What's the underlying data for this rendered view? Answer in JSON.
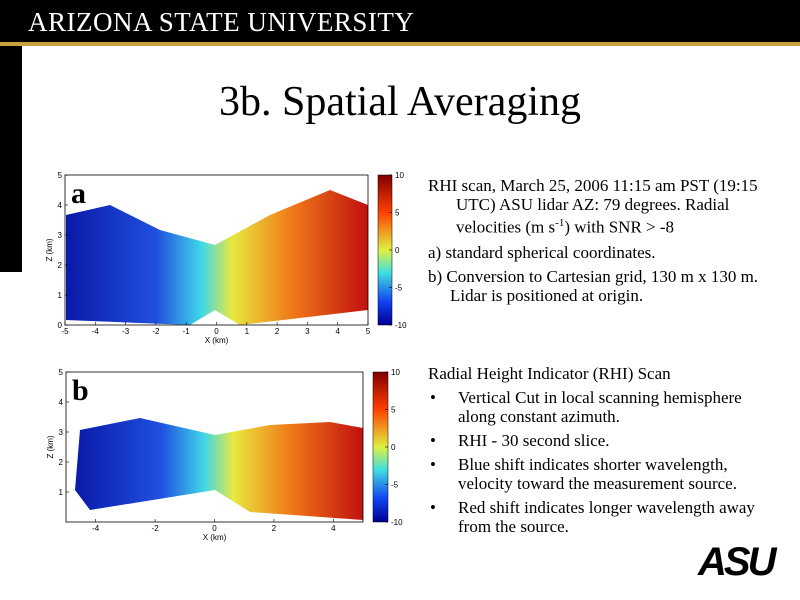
{
  "header": {
    "brand": "ARIZONA STATE UNIVERSITY"
  },
  "title": "3b. Spatial Averaging",
  "panels": [
    {
      "label": "a",
      "x_label": "X (km)",
      "y_label": "Z (km)",
      "xticks": [
        -5,
        -4,
        -3,
        -2,
        -1,
        0,
        1,
        2,
        3,
        4,
        5
      ],
      "yticks": [
        0,
        1,
        2,
        3,
        4,
        5
      ],
      "colorbar_ticks": [
        10,
        5,
        0,
        -5,
        -10
      ]
    },
    {
      "label": "b",
      "x_label": "X (km)",
      "y_label": "Z (km)",
      "xticks": [
        -4,
        -2,
        0,
        2,
        4
      ],
      "yticks": [
        1,
        2,
        3,
        4,
        5
      ],
      "colorbar_ticks": [
        10,
        5,
        0,
        -5,
        -10
      ]
    }
  ],
  "description": {
    "intro": {
      "before": "RHI scan, March 25, 2006 11:15 am PST (19:15 UTC) ASU lidar AZ: 79 degrees.  Radial velocities (m s",
      "sup": "-1",
      "after": ") with SNR > -8"
    },
    "items": [
      "a) standard spherical coordinates.",
      "b) Conversion to Cartesian grid, 130 m x 130 m. Lidar is positioned at origin."
    ]
  },
  "rhi": {
    "heading": "Radial Height Indicator (RHI) Scan",
    "bullets": [
      "Vertical Cut in local scanning hemisphere along constant azimuth.",
      "RHI - 30 second slice.",
      "Blue shift indicates shorter wavelength, velocity toward the measurement source.",
      "Red shift indicates longer wavelength away from the source."
    ]
  },
  "logo": "ASU"
}
